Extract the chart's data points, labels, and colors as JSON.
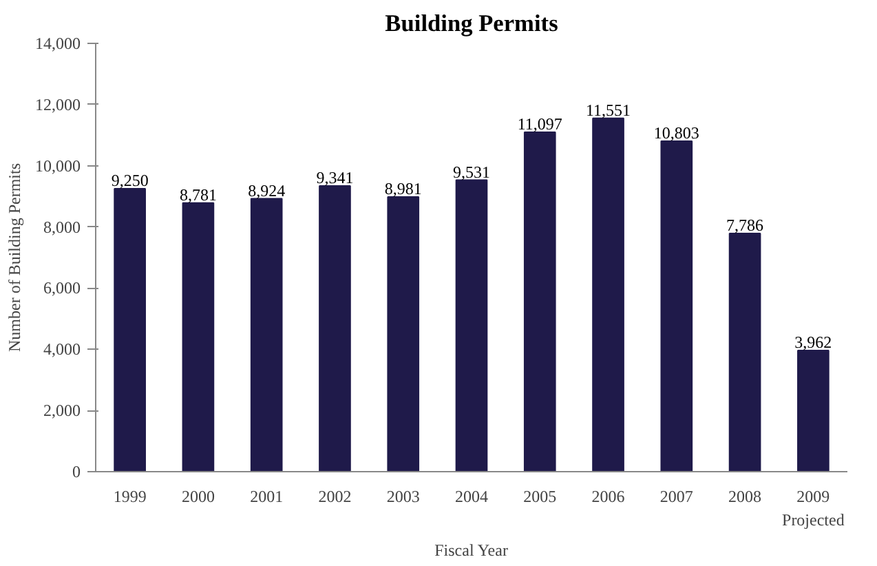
{
  "chart_data": {
    "type": "bar",
    "title": "Building Permits",
    "xlabel": "Fiscal Year",
    "ylabel": "Number of Building Permits",
    "categories": [
      "1999",
      "2000",
      "2001",
      "2002",
      "2003",
      "2004",
      "2005",
      "2006",
      "2007",
      "2008",
      "2009\nProjected"
    ],
    "values": [
      9250,
      8781,
      8924,
      9341,
      8981,
      9531,
      11097,
      11551,
      10803,
      7786,
      3962
    ],
    "value_labels": [
      "9,250",
      "8,781",
      "8,924",
      "9,341",
      "8,981",
      "9,531",
      "11,097",
      "11,551",
      "10,803",
      "7,786",
      "3,962"
    ],
    "color": "#1f1a4a",
    "grid": false,
    "ylim": [
      0,
      14000
    ],
    "yticks": [
      {
        "value": 0,
        "label": "0"
      },
      {
        "value": 2000,
        "label": "2,000"
      },
      {
        "value": 4000,
        "label": "4,000"
      },
      {
        "value": 6000,
        "label": "6,000"
      },
      {
        "value": 8000,
        "label": "8,000"
      },
      {
        "value": 10000,
        "label": "10,000"
      },
      {
        "value": 12000,
        "label": "12,000"
      },
      {
        "value": 14000,
        "label": "14,000"
      }
    ]
  }
}
